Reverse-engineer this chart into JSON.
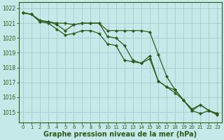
{
  "title": "Graphe pression niveau de la mer (hPa)",
  "bg_color": "#c5e8e8",
  "grid_color": "#a8d0d0",
  "line_color": "#2d5a1b",
  "ylim": [
    1014.3,
    1022.4
  ],
  "yticks": [
    1015,
    1016,
    1017,
    1018,
    1019,
    1020,
    1021,
    1022
  ],
  "xlim": [
    -0.5,
    23.5
  ],
  "xticks": [
    0,
    1,
    2,
    3,
    4,
    5,
    6,
    7,
    8,
    9,
    10,
    11,
    12,
    13,
    14,
    15,
    16,
    17,
    18,
    19,
    20,
    21,
    22,
    23
  ],
  "line1": [
    1021.7,
    1021.6,
    1021.1,
    1021.1,
    1021.0,
    1021.0,
    1020.9,
    1021.0,
    1021.0,
    1021.0,
    1020.5,
    1020.5,
    1020.5,
    1020.5,
    1020.5,
    1020.4,
    1018.9,
    1017.4,
    1016.5,
    1015.8,
    1015.1,
    1014.9,
    1015.1,
    1014.9
  ],
  "line2": [
    1021.7,
    1021.6,
    1021.2,
    1021.1,
    1020.9,
    1020.5,
    1020.9,
    1021.0,
    1021.0,
    1021.0,
    1020.1,
    1020.0,
    1019.5,
    1018.5,
    1018.3,
    1018.8,
    1017.1,
    1016.7,
    1016.5,
    1015.8,
    1015.1,
    1015.5,
    1015.1,
    1014.9
  ],
  "line3": [
    1021.7,
    1021.6,
    1021.1,
    1021.0,
    1020.6,
    1020.2,
    1020.3,
    1020.5,
    1020.5,
    1020.3,
    1019.6,
    1019.5,
    1018.5,
    1018.4,
    1018.3,
    1018.6,
    1017.1,
    1016.7,
    1016.3,
    1015.8,
    1015.2,
    1015.5,
    1015.1,
    1014.8
  ],
  "ylabel_fontsize": 5.5,
  "xlabel_fontsize": 7.0,
  "tick_fontsize": 5.0
}
